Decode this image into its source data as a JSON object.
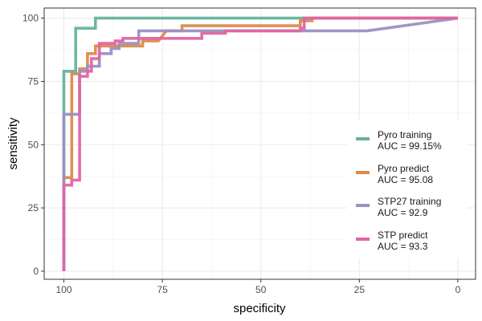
{
  "chart_data": {
    "type": "line",
    "xlabel": "specificity",
    "ylabel": "sensitivity",
    "x_reversed": true,
    "xlim": [
      100,
      0
    ],
    "ylim": [
      0,
      100
    ],
    "x_ticks": [
      100,
      75,
      50,
      25,
      0
    ],
    "y_ticks": [
      0,
      25,
      50,
      75,
      100
    ],
    "grid": true,
    "legend_position": "right",
    "series": [
      {
        "name": "Pyro training",
        "auc_label": "AUC = 99.15%",
        "color": "#66B39A",
        "points": [
          [
            100,
            0
          ],
          [
            100,
            79
          ],
          [
            97,
            79
          ],
          [
            97,
            96
          ],
          [
            92,
            96
          ],
          [
            92,
            100
          ],
          [
            0,
            100
          ]
        ]
      },
      {
        "name": "Pyro predict",
        "auc_label": "AUC = 95.08",
        "color": "#DD8A49",
        "points": [
          [
            100,
            0
          ],
          [
            100,
            37
          ],
          [
            98,
            37
          ],
          [
            98,
            78
          ],
          [
            96,
            78
          ],
          [
            96,
            80
          ],
          [
            94,
            80
          ],
          [
            94,
            86
          ],
          [
            92,
            86
          ],
          [
            92,
            89
          ],
          [
            80,
            89
          ],
          [
            80,
            91
          ],
          [
            76,
            91
          ],
          [
            74,
            95
          ],
          [
            70,
            95
          ],
          [
            70,
            97
          ],
          [
            40,
            97
          ],
          [
            40,
            99
          ],
          [
            37,
            99
          ],
          [
            37,
            100
          ],
          [
            0,
            100
          ]
        ]
      },
      {
        "name": "STP27 training",
        "auc_label": "AUC = 92.9",
        "color": "#9A90C4",
        "points": [
          [
            100,
            0
          ],
          [
            100,
            62
          ],
          [
            96,
            62
          ],
          [
            96,
            79
          ],
          [
            94,
            79
          ],
          [
            94,
            81
          ],
          [
            91,
            81
          ],
          [
            91,
            86
          ],
          [
            88,
            86
          ],
          [
            88,
            88
          ],
          [
            86,
            88
          ],
          [
            86,
            90
          ],
          [
            81,
            90
          ],
          [
            81,
            95
          ],
          [
            75,
            95
          ],
          [
            23,
            95
          ],
          [
            0,
            100
          ]
        ]
      },
      {
        "name": "STP predict",
        "auc_label": "AUC = 93.3",
        "color": "#E064A4",
        "points": [
          [
            100,
            0
          ],
          [
            100,
            34
          ],
          [
            98,
            34
          ],
          [
            98,
            36
          ],
          [
            96,
            36
          ],
          [
            96,
            77
          ],
          [
            94,
            77
          ],
          [
            94,
            79
          ],
          [
            93,
            79
          ],
          [
            93,
            84
          ],
          [
            91,
            84
          ],
          [
            91,
            90
          ],
          [
            87,
            90
          ],
          [
            87,
            91
          ],
          [
            85,
            91
          ],
          [
            85,
            92
          ],
          [
            65,
            92
          ],
          [
            65,
            94
          ],
          [
            59,
            94
          ],
          [
            59,
            95
          ],
          [
            40,
            95
          ],
          [
            40,
            96
          ],
          [
            39,
            96
          ],
          [
            39,
            100
          ],
          [
            0,
            100
          ]
        ]
      }
    ]
  }
}
